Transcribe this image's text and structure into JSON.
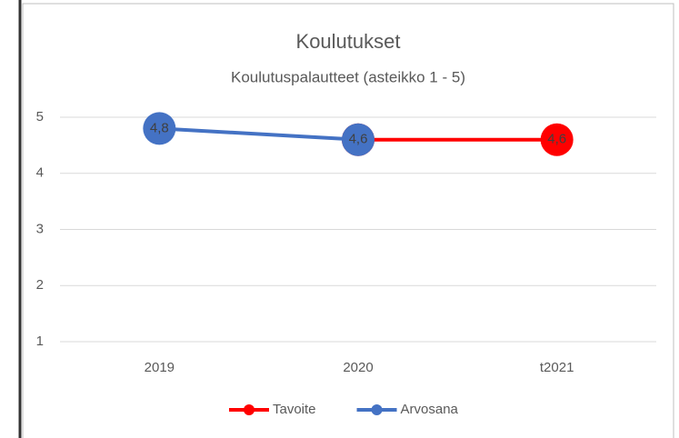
{
  "chart_data": {
    "type": "line",
    "title": "Koulutukset",
    "subtitle": "Koulutuspalautteet (asteikko 1 - 5)",
    "categories": [
      "2019",
      "2020",
      "t2021"
    ],
    "series": [
      {
        "name": "Tavoite",
        "color": "#ff0000",
        "values": [
          null,
          4.6,
          4.6
        ],
        "value_labels": [
          null,
          "4,6",
          "4,6"
        ]
      },
      {
        "name": "Arvosana",
        "color": "#4472c4",
        "values": [
          4.8,
          4.6,
          null
        ],
        "value_labels": [
          "4,8",
          "4,6",
          null
        ]
      }
    ],
    "ylim": [
      1,
      5
    ],
    "yticks": [
      1,
      2,
      3,
      4,
      5
    ],
    "grid": true,
    "legend": "bottom"
  }
}
